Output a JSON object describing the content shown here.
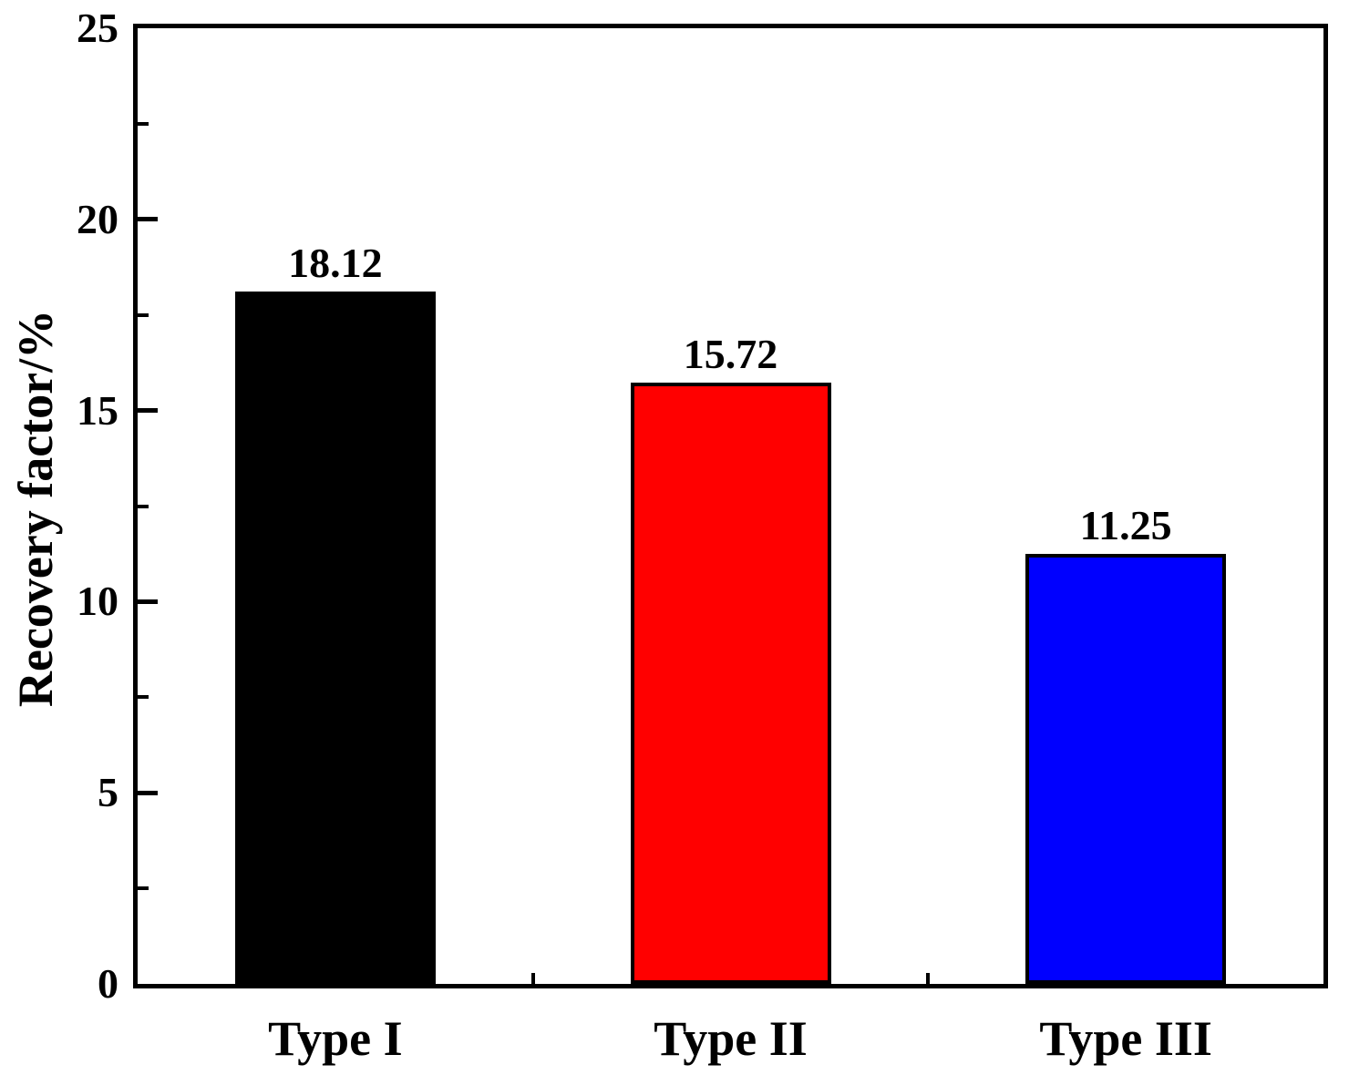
{
  "chart_data": {
    "type": "bar",
    "title": "",
    "xlabel": "",
    "ylabel": "Recovery factor/%",
    "categories": [
      "Type I",
      "Type II",
      "Type III"
    ],
    "values": [
      18.12,
      15.72,
      11.25
    ],
    "value_labels": [
      "18.12",
      "15.72",
      "11.25"
    ],
    "bar_colors": [
      "#000000",
      "#ff0000",
      "#0000ff"
    ],
    "bar_border_color": "#000000",
    "ylim": [
      0,
      25
    ],
    "y_major_ticks": [
      0,
      5,
      10,
      15,
      20,
      25
    ],
    "y_minor_ticks": [
      2.5,
      7.5,
      12.5,
      17.5,
      22.5
    ],
    "grid": false,
    "legend_position": "none",
    "axis_color": "#000000",
    "background_color": "#ffffff"
  }
}
